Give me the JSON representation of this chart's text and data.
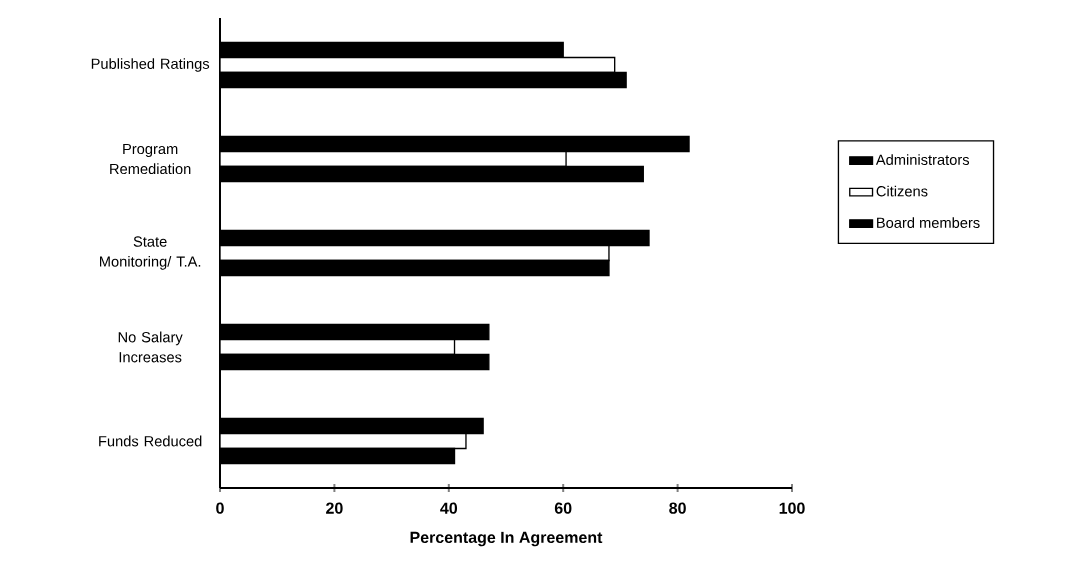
{
  "chart_data": {
    "type": "bar",
    "orientation": "horizontal",
    "xlabel": "Percentage In Agreement",
    "categories": [
      "Published Ratings",
      "Program Remediation",
      "State Monitoring/ T.A.",
      "No Salary Increases",
      "Funds Reduced"
    ],
    "series": [
      {
        "name": "Administrators",
        "color": "#000000",
        "values": [
          60,
          82,
          75,
          47,
          46
        ]
      },
      {
        "name": "Citizens",
        "color": "#ffffff",
        "values": [
          69,
          60.5,
          68,
          41,
          43
        ]
      },
      {
        "name": "Board members",
        "color": "#000000",
        "values": [
          71,
          74,
          68,
          47,
          41
        ]
      }
    ],
    "xlim": [
      0,
      100
    ],
    "xticks": [
      0,
      20,
      40,
      60,
      80,
      100
    ],
    "grid": false,
    "legend": "right"
  }
}
